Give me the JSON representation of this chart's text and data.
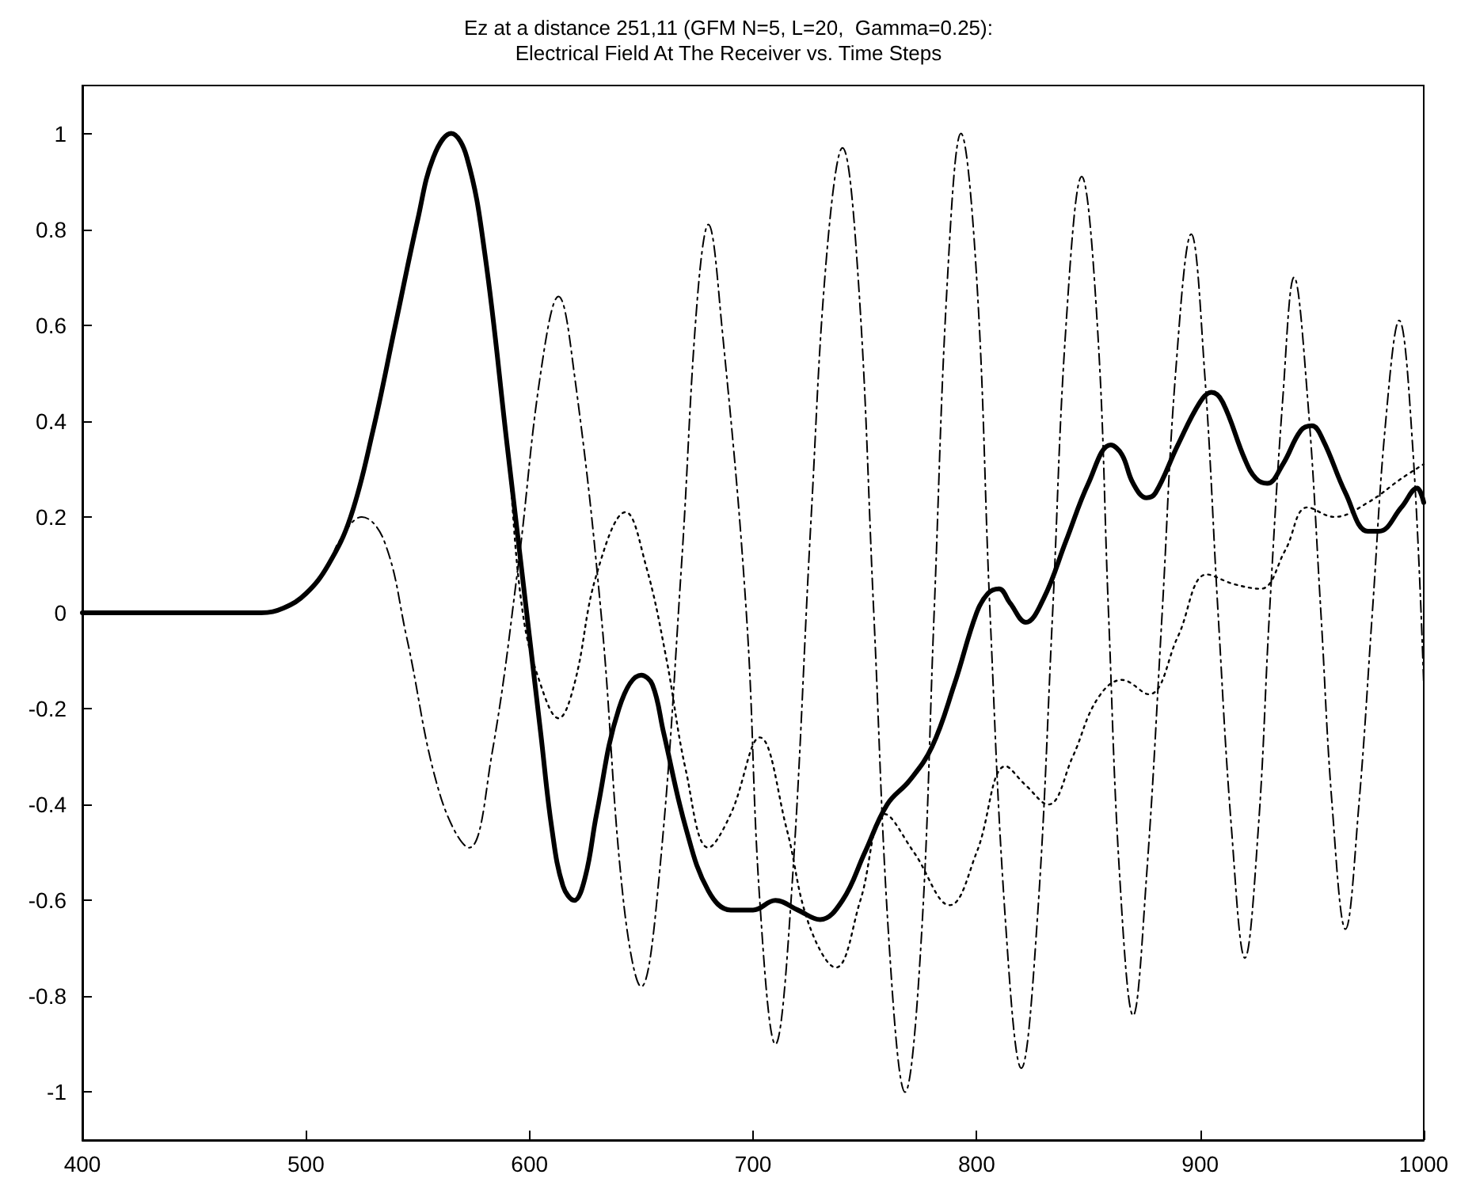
{
  "chart_data": {
    "type": "line",
    "title": "Ez at a distance 251,11 (GFM N=5, L=20,  Gamma=0.25):",
    "subtitle": "Electrical Field At The Receiver vs. Time Steps",
    "xlim": [
      400,
      1000
    ],
    "xticks": [
      400,
      500,
      600,
      700,
      800,
      900,
      1000
    ],
    "ylim": [
      -1.1,
      1.1
    ],
    "yticks": [
      -1,
      -0.8,
      -0.6,
      -0.4,
      -0.2,
      0,
      0.2,
      0.4,
      0.6,
      0.8,
      1
    ],
    "marker": "none",
    "series": [
      {
        "color": "#000000",
        "line_style": "solid",
        "x": [
          400,
          480,
          490,
          500,
          510,
          520,
          530,
          540,
          550,
          557,
          565,
          572,
          580,
          590,
          600,
          605,
          610,
          615,
          620,
          625,
          630,
          640,
          650,
          655,
          660,
          670,
          680,
          690,
          700,
          710,
          720,
          730,
          740,
          750,
          760,
          770,
          780,
          790,
          800,
          805,
          810,
          815,
          822,
          830,
          840,
          850,
          860,
          865,
          870,
          876,
          880,
          890,
          900,
          905,
          910,
          920,
          925,
          930,
          937,
          945,
          950,
          955,
          965,
          975,
          980,
          990,
          997,
          1000
        ],
        "values": [
          0,
          0,
          0.01,
          0.04,
          0.1,
          0.2,
          0.38,
          0.6,
          0.82,
          0.95,
          1.0,
          0.95,
          0.75,
          0.35,
          -0.05,
          -0.25,
          -0.45,
          -0.57,
          -0.6,
          -0.55,
          -0.42,
          -0.2,
          -0.13,
          -0.15,
          -0.25,
          -0.45,
          -0.58,
          -0.62,
          -0.62,
          -0.6,
          -0.62,
          -0.64,
          -0.6,
          -0.5,
          -0.4,
          -0.35,
          -0.28,
          -0.15,
          0.0,
          0.04,
          0.05,
          0.02,
          -0.02,
          0.03,
          0.15,
          0.27,
          0.35,
          0.33,
          0.27,
          0.24,
          0.25,
          0.35,
          0.44,
          0.46,
          0.44,
          0.32,
          0.28,
          0.27,
          0.31,
          0.38,
          0.39,
          0.36,
          0.25,
          0.17,
          0.17,
          0.22,
          0.26,
          0.23
        ]
      },
      {
        "color": "#000000",
        "line_style": "dashed",
        "x": [
          400,
          480,
          490,
          500,
          510,
          515,
          525,
          535,
          545,
          560,
          573,
          583,
          595,
          605,
          613,
          620,
          632,
          642,
          650,
          658,
          668,
          675,
          680,
          686,
          697,
          703,
          710,
          717,
          726,
          733,
          740,
          747,
          754,
          761,
          768,
          775,
          781,
          787,
          793,
          800,
          806,
          813,
          820,
          827,
          834,
          840,
          847,
          854,
          859,
          864,
          870,
          876,
          883,
          889,
          896,
          902,
          908,
          914,
          920,
          926,
          931,
          937,
          942,
          948,
          954,
          959,
          965,
          971,
          977,
          983,
          989,
          995,
          1000
        ],
        "values": [
          0,
          0,
          0.01,
          0.04,
          0.1,
          0.15,
          0.2,
          0.15,
          -0.05,
          -0.38,
          -0.49,
          -0.3,
          0.1,
          0.5,
          0.66,
          0.5,
          0.0,
          -0.6,
          -0.78,
          -0.55,
          0.1,
          0.65,
          0.81,
          0.6,
          0.0,
          -0.6,
          -0.9,
          -0.6,
          0.2,
          0.75,
          0.97,
          0.7,
          0.0,
          -0.7,
          -1.0,
          -0.7,
          0.0,
          0.7,
          1.0,
          0.7,
          0.0,
          -0.65,
          -0.95,
          -0.65,
          0.0,
          0.6,
          0.91,
          0.6,
          0.0,
          -0.55,
          -0.84,
          -0.55,
          0.0,
          0.5,
          0.79,
          0.5,
          0.0,
          -0.45,
          -0.72,
          -0.45,
          0.0,
          0.45,
          0.7,
          0.45,
          0.0,
          -0.4,
          -0.66,
          -0.4,
          0.0,
          0.4,
          0.61,
          0.35,
          -0.15
        ]
      },
      {
        "color": "#000000",
        "line_style": "dotted",
        "x": [
          400,
          480,
          490,
          500,
          510,
          520,
          530,
          540,
          550,
          557,
          565,
          572,
          580,
          590,
          597,
          605,
          613,
          620,
          630,
          643,
          652,
          661,
          670,
          680,
          690,
          703,
          715,
          725,
          737,
          748,
          759,
          772,
          788,
          800,
          813,
          822,
          832,
          843,
          854,
          865,
          877,
          890,
          903,
          915,
          927,
          938,
          948,
          960,
          975,
          990,
          1000
        ],
        "values": [
          0,
          0,
          0.01,
          0.04,
          0.1,
          0.2,
          0.38,
          0.6,
          0.82,
          0.95,
          1.0,
          0.95,
          0.75,
          0.35,
          0.0,
          -0.15,
          -0.22,
          -0.15,
          0.08,
          0.21,
          0.1,
          -0.09,
          -0.33,
          -0.49,
          -0.42,
          -0.26,
          -0.45,
          -0.65,
          -0.74,
          -0.6,
          -0.42,
          -0.5,
          -0.61,
          -0.5,
          -0.32,
          -0.36,
          -0.4,
          -0.3,
          -0.18,
          -0.14,
          -0.17,
          -0.05,
          0.08,
          0.06,
          0.05,
          0.13,
          0.22,
          0.2,
          0.23,
          0.28,
          0.31
        ]
      }
    ]
  }
}
